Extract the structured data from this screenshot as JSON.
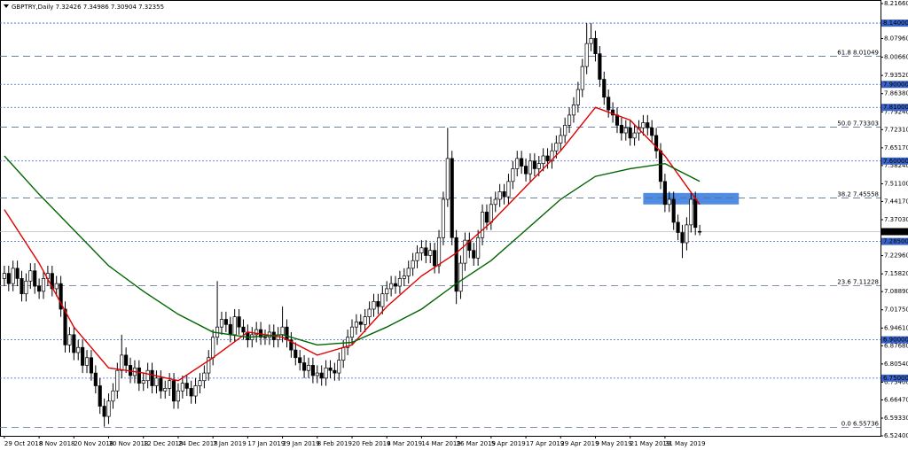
{
  "chart_data": {
    "type": "candlestick",
    "title": "GBPTRY,Daily  7.32426 7.34986 7.30904 7.32355",
    "categories": [
      "29 Oct 2018",
      null,
      null,
      null,
      null,
      null,
      null,
      null,
      "8 Nov 2018",
      null,
      null,
      null,
      null,
      null,
      null,
      null,
      "20 Nov 2018",
      null,
      null,
      null,
      null,
      null,
      null,
      null,
      "30 Nov 2018",
      null,
      null,
      null,
      null,
      null,
      null,
      null,
      "12 Dec 2018",
      null,
      null,
      null,
      null,
      null,
      null,
      null,
      "24 Dec 2018",
      null,
      null,
      null,
      null,
      null,
      null,
      null,
      "7 Jan 2019",
      null,
      null,
      null,
      null,
      null,
      null,
      null,
      "17 Jan 2019",
      null,
      null,
      null,
      null,
      null,
      null,
      null,
      "29 Jan 2019",
      null,
      null,
      null,
      null,
      null,
      null,
      null,
      "8 Feb 2019",
      null,
      null,
      null,
      null,
      null,
      null,
      null,
      "20 Feb 2019",
      null,
      null,
      null,
      null,
      null,
      null,
      null,
      "4 Mar 2019",
      null,
      null,
      null,
      null,
      null,
      null,
      null,
      "14 Mar 2019",
      null,
      null,
      null,
      null,
      null,
      null,
      null,
      "26 Mar 2019",
      null,
      null,
      null,
      null,
      null,
      null,
      null,
      "5 Apr 2019",
      null,
      null,
      null,
      null,
      null,
      null,
      null,
      "17 Apr 2019",
      null,
      null,
      null,
      null,
      null,
      null,
      null,
      "29 Apr 2019",
      null,
      null,
      null,
      null,
      null,
      null,
      null,
      "9 May 2019",
      null,
      null,
      null,
      null,
      null,
      null,
      null,
      "21 May 2019",
      null,
      null,
      null,
      null,
      null,
      null,
      null,
      "31 May 2019",
      null,
      null,
      null,
      null,
      null,
      null,
      null,
      null
    ],
    "open": [
      7.14,
      7.16,
      7.12,
      7.18,
      7.14,
      7.08,
      7.13,
      7.17,
      7.11,
      7.09,
      7.14,
      7.16,
      7.1,
      7.12,
      7.02,
      6.88,
      6.92,
      6.85,
      6.87,
      6.8,
      6.83,
      6.77,
      6.72,
      6.64,
      6.6,
      6.66,
      6.7,
      6.78,
      6.84,
      6.8,
      6.76,
      6.79,
      6.73,
      6.74,
      6.78,
      6.72,
      6.75,
      6.7,
      6.71,
      6.74,
      6.66,
      6.7,
      6.73,
      6.71,
      6.68,
      6.72,
      6.74,
      6.77,
      6.83,
      6.91,
      6.95,
      6.98,
      6.96,
      6.92,
      6.99,
      6.95,
      6.93,
      6.9,
      6.92,
      6.94,
      6.91,
      6.91,
      6.93,
      6.9,
      6.92,
      6.95,
      6.9,
      6.86,
      6.83,
      6.81,
      6.78,
      6.8,
      6.76,
      6.77,
      6.75,
      6.79,
      6.78,
      6.77,
      6.82,
      6.87,
      6.91,
      6.95,
      6.97,
      6.96,
      6.99,
      7.02,
      7.05,
      7.03,
      7.08,
      7.1,
      7.12,
      7.11,
      7.14,
      7.15,
      7.18,
      7.21,
      7.24,
      7.26,
      7.23,
      7.25,
      7.19,
      7.3,
      7.45,
      7.61,
      7.3,
      7.09,
      7.2,
      7.29,
      7.25,
      7.22,
      7.3,
      7.4,
      7.36,
      7.43,
      7.45,
      7.48,
      7.46,
      7.52,
      7.57,
      7.61,
      7.58,
      7.55,
      7.6,
      7.57,
      7.59,
      7.62,
      7.6,
      7.64,
      7.67,
      7.7,
      7.74,
      7.78,
      7.82,
      7.88,
      7.97,
      8.06,
      8.08,
      8.02,
      7.92,
      7.85,
      7.8,
      7.78,
      7.74,
      7.71,
      7.73,
      7.69,
      7.71,
      7.73,
      7.75,
      7.73,
      7.7,
      7.64,
      7.52,
      7.43,
      7.45,
      7.36,
      7.32,
      7.28,
      7.35,
      7.45,
      7.32426
    ],
    "high": [
      7.19,
      7.19,
      7.21,
      7.21,
      7.17,
      7.16,
      7.2,
      7.2,
      7.14,
      7.17,
      7.19,
      7.19,
      7.15,
      7.15,
      7.05,
      6.95,
      6.95,
      6.9,
      6.9,
      6.86,
      6.86,
      6.8,
      6.75,
      6.67,
      6.69,
      6.73,
      6.81,
      6.92,
      6.87,
      6.83,
      6.82,
      6.82,
      6.77,
      6.81,
      6.81,
      6.78,
      6.78,
      6.74,
      6.77,
      6.77,
      6.73,
      6.76,
      6.76,
      6.74,
      6.75,
      6.77,
      6.8,
      6.86,
      6.94,
      7.13,
      7.01,
      7.01,
      6.99,
      7.02,
      7.02,
      6.98,
      6.96,
      6.95,
      6.97,
      6.97,
      6.94,
      6.96,
      6.96,
      6.95,
      7.03,
      6.98,
      6.93,
      6.89,
      6.86,
      6.84,
      6.83,
      6.83,
      6.8,
      6.8,
      6.82,
      6.82,
      6.81,
      6.85,
      6.9,
      6.94,
      6.98,
      7.0,
      7.0,
      7.02,
      7.05,
      7.08,
      7.08,
      7.11,
      7.13,
      7.15,
      7.15,
      7.17,
      7.18,
      7.21,
      7.24,
      7.27,
      7.29,
      7.29,
      7.28,
      7.28,
      7.33,
      7.48,
      7.73,
      7.64,
      7.33,
      7.23,
      7.32,
      7.32,
      7.28,
      7.33,
      7.43,
      7.43,
      7.46,
      7.48,
      7.51,
      7.51,
      7.55,
      7.6,
      7.64,
      7.64,
      7.61,
      7.63,
      7.63,
      7.62,
      7.65,
      7.65,
      7.67,
      7.7,
      7.73,
      7.77,
      7.81,
      7.85,
      7.91,
      8.0,
      8.14,
      8.14,
      8.11,
      8.05,
      7.95,
      7.88,
      7.83,
      7.81,
      7.77,
      7.76,
      7.76,
      7.74,
      7.76,
      7.78,
      7.78,
      7.76,
      7.73,
      7.67,
      7.55,
      7.48,
      7.48,
      7.39,
      7.35,
      7.38,
      7.48,
      7.48,
      7.34986
    ],
    "low": [
      7.11,
      7.09,
      7.09,
      7.11,
      7.05,
      7.05,
      7.1,
      7.08,
      7.06,
      7.06,
      7.11,
      7.07,
      7.07,
      6.99,
      6.85,
      6.85,
      6.82,
      6.82,
      6.77,
      6.77,
      6.74,
      6.69,
      6.61,
      6.56,
      6.57,
      6.63,
      6.67,
      6.75,
      6.77,
      6.73,
      6.73,
      6.7,
      6.7,
      6.71,
      6.69,
      6.69,
      6.67,
      6.67,
      6.68,
      6.63,
      6.63,
      6.67,
      6.68,
      6.65,
      6.65,
      6.69,
      6.71,
      6.74,
      6.8,
      6.88,
      6.92,
      6.93,
      6.89,
      6.89,
      6.92,
      6.9,
      6.87,
      6.87,
      6.89,
      6.88,
      6.88,
      6.88,
      6.87,
      6.87,
      6.89,
      6.87,
      6.83,
      6.8,
      6.78,
      6.75,
      6.75,
      6.73,
      6.73,
      6.72,
      6.72,
      6.75,
      6.74,
      6.74,
      6.79,
      6.84,
      6.88,
      6.92,
      6.93,
      6.93,
      6.96,
      6.99,
      7.0,
      7.0,
      7.05,
      7.07,
      7.08,
      7.08,
      7.11,
      7.12,
      7.15,
      7.18,
      7.21,
      7.2,
      7.2,
      7.16,
      7.16,
      7.27,
      7.42,
      7.27,
      7.04,
      7.06,
      7.17,
      7.22,
      7.19,
      7.19,
      7.27,
      7.33,
      7.33,
      7.4,
      7.42,
      7.43,
      7.43,
      7.49,
      7.54,
      7.55,
      7.52,
      7.52,
      7.54,
      7.54,
      7.56,
      7.57,
      7.57,
      7.61,
      7.64,
      7.67,
      7.71,
      7.75,
      7.79,
      7.85,
      7.94,
      8.03,
      7.99,
      7.89,
      7.82,
      7.77,
      7.75,
      7.71,
      7.68,
      7.68,
      7.66,
      7.66,
      7.68,
      7.7,
      7.7,
      7.67,
      7.61,
      7.49,
      7.4,
      7.4,
      7.33,
      7.29,
      7.22,
      7.25,
      7.32,
      7.31,
      7.30904
    ],
    "close": [
      7.16,
      7.12,
      7.18,
      7.14,
      7.08,
      7.13,
      7.17,
      7.11,
      7.09,
      7.14,
      7.16,
      7.1,
      7.12,
      7.02,
      6.88,
      6.92,
      6.85,
      6.87,
      6.8,
      6.83,
      6.77,
      6.72,
      6.64,
      6.6,
      6.66,
      6.7,
      6.78,
      6.84,
      6.8,
      6.76,
      6.79,
      6.73,
      6.74,
      6.78,
      6.72,
      6.75,
      6.7,
      6.71,
      6.74,
      6.66,
      6.7,
      6.73,
      6.71,
      6.68,
      6.72,
      6.74,
      6.77,
      6.83,
      6.91,
      6.95,
      6.98,
      6.96,
      6.92,
      6.99,
      6.95,
      6.93,
      6.9,
      6.92,
      6.94,
      6.91,
      6.91,
      6.93,
      6.9,
      6.92,
      6.95,
      6.9,
      6.86,
      6.83,
      6.81,
      6.78,
      6.8,
      6.76,
      6.77,
      6.75,
      6.79,
      6.78,
      6.77,
      6.82,
      6.87,
      6.91,
      6.95,
      6.97,
      6.96,
      6.99,
      7.02,
      7.05,
      7.03,
      7.08,
      7.1,
      7.12,
      7.11,
      7.14,
      7.15,
      7.18,
      7.21,
      7.24,
      7.26,
      7.23,
      7.25,
      7.19,
      7.3,
      7.45,
      7.61,
      7.3,
      7.09,
      7.2,
      7.29,
      7.25,
      7.22,
      7.3,
      7.4,
      7.36,
      7.43,
      7.45,
      7.48,
      7.46,
      7.52,
      7.57,
      7.61,
      7.58,
      7.55,
      7.6,
      7.57,
      7.59,
      7.62,
      7.6,
      7.64,
      7.67,
      7.7,
      7.74,
      7.78,
      7.82,
      7.88,
      7.97,
      8.06,
      8.08,
      8.02,
      7.92,
      7.85,
      7.8,
      7.78,
      7.74,
      7.71,
      7.73,
      7.69,
      7.71,
      7.73,
      7.75,
      7.73,
      7.7,
      7.64,
      7.52,
      7.43,
      7.45,
      7.36,
      7.32,
      7.28,
      7.35,
      7.45,
      7.34,
      7.32355
    ],
    "moving_averages": [
      {
        "color": "#e00000",
        "x": [
          0,
          8,
          16,
          24,
          32,
          40,
          48,
          56,
          64,
          72,
          80,
          88,
          96,
          104,
          112,
          120,
          128,
          136,
          144,
          152,
          160
        ],
        "values": [
          7.41,
          7.2,
          6.95,
          6.79,
          6.77,
          6.74,
          6.83,
          6.93,
          6.91,
          6.84,
          6.88,
          7.03,
          7.15,
          7.24,
          7.36,
          7.5,
          7.64,
          7.81,
          7.76,
          7.62,
          7.43
        ]
      },
      {
        "color": "#006400",
        "x": [
          0,
          8,
          16,
          24,
          32,
          40,
          48,
          56,
          64,
          72,
          80,
          88,
          96,
          104,
          112,
          120,
          128,
          136,
          144,
          152,
          160
        ],
        "values": [
          7.62,
          7.47,
          7.33,
          7.19,
          7.09,
          7.0,
          6.93,
          6.91,
          6.92,
          6.88,
          6.89,
          6.95,
          7.02,
          7.12,
          7.21,
          7.33,
          7.45,
          7.54,
          7.57,
          7.59,
          7.52
        ]
      }
    ],
    "zone": {
      "x": [
        147,
        169
      ],
      "y": [
        7.43,
        7.475
      ],
      "color": "#3d7fe0"
    },
    "levels": [
      {
        "value": 8.14,
        "label": "8.14000",
        "style": "level"
      },
      {
        "value": 8.01049,
        "label": "61.8 8.01049",
        "style": "fib"
      },
      {
        "value": 7.9,
        "label": "7.90000",
        "style": "level"
      },
      {
        "value": 7.81,
        "label": "7.81000",
        "style": "level"
      },
      {
        "value": 7.73303,
        "label": "50.0 7.73303",
        "style": "fib"
      },
      {
        "value": 7.6,
        "label": "7.60000",
        "style": "level"
      },
      {
        "value": 7.45558,
        "label": "38.2 7.45558",
        "style": "fib"
      },
      {
        "value": 7.285,
        "label": "7.28500",
        "style": "level"
      },
      {
        "value": 7.11228,
        "label": "23.6 7.11228",
        "style": "fib"
      },
      {
        "value": 6.9,
        "label": "6.90000",
        "style": "level"
      },
      {
        "value": 6.75,
        "label": "6.75000",
        "style": "level"
      },
      {
        "value": 6.55736,
        "label": "0.0 6.55736",
        "style": "fib"
      }
    ],
    "last": {
      "value": 7.32355,
      "label": "7.32355"
    },
    "xlim": [
      -1,
      201.6
    ],
    "ylim": [
      6.524,
      8.2166
    ],
    "yticks": [
      {
        "value": 8.2166,
        "label": "8.21660"
      },
      {
        "value": 8.0796,
        "label": "8.07960"
      },
      {
        "value": 8.0066,
        "label": "8.00660"
      },
      {
        "value": 7.9352,
        "label": "7.93520"
      },
      {
        "value": 7.8638,
        "label": "7.86380"
      },
      {
        "value": 7.7924,
        "label": "7.79240"
      },
      {
        "value": 7.7231,
        "label": "7.72310"
      },
      {
        "value": 7.6517,
        "label": "7.65170"
      },
      {
        "value": 7.5824,
        "label": "7.58240"
      },
      {
        "value": 7.511,
        "label": "7.51100"
      },
      {
        "value": 7.4417,
        "label": "7.44170"
      },
      {
        "value": 7.3703,
        "label": "7.37030"
      },
      {
        "value": 7.2296,
        "label": "7.22960"
      },
      {
        "value": 7.1582,
        "label": "7.15820"
      },
      {
        "value": 7.0889,
        "label": "7.08890"
      },
      {
        "value": 7.0175,
        "label": "7.01750"
      },
      {
        "value": 6.9461,
        "label": "6.94610"
      },
      {
        "value": 6.8768,
        "label": "6.87680"
      },
      {
        "value": 6.8054,
        "label": "6.80540"
      },
      {
        "value": 6.734,
        "label": "6.73400"
      },
      {
        "value": 6.6647,
        "label": "6.66470"
      },
      {
        "value": 6.5933,
        "label": "6.59330"
      },
      {
        "value": 6.524,
        "label": "6.52400"
      }
    ]
  }
}
